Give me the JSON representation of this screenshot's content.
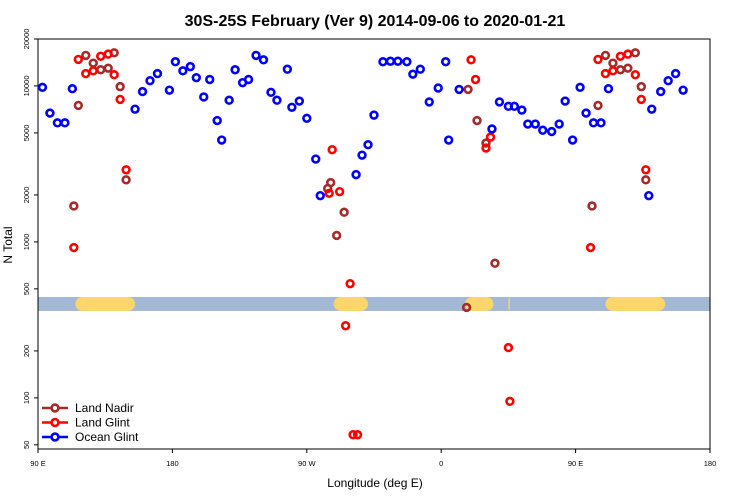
{
  "chart_data": {
    "type": "scatter",
    "title": "30S-25S February (Ver 9)   2014-09-06 to 2020-01-21",
    "xlabel": "Longitude (deg E)",
    "ylabel": "N Total",
    "xlim": [
      90,
      540
    ],
    "ylim": [
      47,
      20000
    ],
    "y_scale": "log",
    "grid": false,
    "legend_position": "bottom-left",
    "x_ticks": [
      {
        "value": 90,
        "label": "90 E"
      },
      {
        "value": 180,
        "label": "180"
      },
      {
        "value": 270,
        "label": "90 W"
      },
      {
        "value": 360,
        "label": "0"
      },
      {
        "value": 450,
        "label": "90 E"
      },
      {
        "value": 540,
        "label": "180"
      }
    ],
    "y_ticks": [
      {
        "value": 50,
        "label": "50"
      },
      {
        "value": 100,
        "label": "100"
      },
      {
        "value": 200,
        "label": "200"
      },
      {
        "value": 500,
        "label": "500"
      },
      {
        "value": 1000,
        "label": "1000"
      },
      {
        "value": 2000,
        "label": "2000"
      },
      {
        "value": 5000,
        "label": "5000"
      },
      {
        "value": 10000,
        "label": "10000"
      },
      {
        "value": 20000,
        "label": "20000"
      }
    ],
    "land_band": {
      "y_value": 400,
      "colors": {
        "ocean": "#a2b8d4",
        "land": "#fcd66a"
      },
      "land_ranges": [
        [
          115,
          155
        ],
        [
          288,
          311
        ],
        [
          376,
          395
        ],
        [
          405,
          406
        ],
        [
          470,
          510
        ]
      ]
    },
    "series": [
      {
        "name": "Land Nadir",
        "color": "#a52a2a",
        "points": [
          [
            114,
            1700
          ],
          [
            117,
            7500
          ],
          [
            122,
            15700
          ],
          [
            127,
            14000
          ],
          [
            132,
            12700
          ],
          [
            137,
            13000
          ],
          [
            141,
            16300
          ],
          [
            145,
            9900
          ],
          [
            149,
            2500
          ],
          [
            286,
            2400
          ],
          [
            284,
            2200
          ],
          [
            290,
            1100
          ],
          [
            295,
            1550
          ],
          [
            377,
            380
          ],
          [
            378,
            9500
          ],
          [
            384,
            6000
          ],
          [
            390,
            4300
          ],
          [
            396,
            730
          ],
          [
            461,
            1700
          ],
          [
            465,
            7500
          ],
          [
            470,
            15700
          ],
          [
            475,
            14000
          ],
          [
            480,
            12700
          ],
          [
            485,
            13000
          ],
          [
            490,
            16300
          ],
          [
            494,
            9900
          ],
          [
            497,
            2500
          ]
        ]
      },
      {
        "name": "Land Glint",
        "color": "#ff0000",
        "points": [
          [
            114,
            920
          ],
          [
            117,
            14800
          ],
          [
            122,
            12000
          ],
          [
            127,
            12500
          ],
          [
            132,
            15500
          ],
          [
            137,
            16000
          ],
          [
            141,
            11800
          ],
          [
            145,
            8200
          ],
          [
            149,
            2900
          ],
          [
            285,
            2050
          ],
          [
            287,
            3900
          ],
          [
            292,
            2100
          ],
          [
            296,
            290
          ],
          [
            299,
            540
          ],
          [
            301,
            58
          ],
          [
            304,
            58
          ],
          [
            380,
            14700
          ],
          [
            383,
            11000
          ],
          [
            390,
            4000
          ],
          [
            393,
            4700
          ],
          [
            405,
            210
          ],
          [
            406,
            95
          ],
          [
            460,
            920
          ],
          [
            465,
            14800
          ],
          [
            470,
            12000
          ],
          [
            475,
            12500
          ],
          [
            480,
            15500
          ],
          [
            485,
            16000
          ],
          [
            490,
            11800
          ],
          [
            494,
            8200
          ],
          [
            497,
            2900
          ]
        ]
      },
      {
        "name": "Ocean Glint",
        "color": "#0000ff",
        "points": [
          [
            93,
            9800
          ],
          [
            98,
            6700
          ],
          [
            103,
            5800
          ],
          [
            108,
            5800
          ],
          [
            113,
            9600
          ],
          [
            155,
            7100
          ],
          [
            160,
            9200
          ],
          [
            165,
            10800
          ],
          [
            170,
            12000
          ],
          [
            178,
            9400
          ],
          [
            182,
            14300
          ],
          [
            187,
            12500
          ],
          [
            192,
            13300
          ],
          [
            196,
            11300
          ],
          [
            201,
            8500
          ],
          [
            205,
            11000
          ],
          [
            210,
            6000
          ],
          [
            213,
            4500
          ],
          [
            218,
            8100
          ],
          [
            222,
            12700
          ],
          [
            227,
            10500
          ],
          [
            231,
            11000
          ],
          [
            236,
            15700
          ],
          [
            241,
            14700
          ],
          [
            246,
            9100
          ],
          [
            250,
            8100
          ],
          [
            257,
            12800
          ],
          [
            260,
            7300
          ],
          [
            265,
            8000
          ],
          [
            270,
            6200
          ],
          [
            276,
            3400
          ],
          [
            279,
            1980
          ],
          [
            303,
            2700
          ],
          [
            307,
            3600
          ],
          [
            311,
            4200
          ],
          [
            315,
            6500
          ],
          [
            321,
            14300
          ],
          [
            326,
            14400
          ],
          [
            331,
            14400
          ],
          [
            337,
            14300
          ],
          [
            341,
            11900
          ],
          [
            346,
            12800
          ],
          [
            352,
            7900
          ],
          [
            358,
            9700
          ],
          [
            363,
            14300
          ],
          [
            365,
            4500
          ],
          [
            372,
            9500
          ],
          [
            394,
            5300
          ],
          [
            399,
            7900
          ],
          [
            405,
            7400
          ],
          [
            409,
            7400
          ],
          [
            414,
            7000
          ],
          [
            418,
            5700
          ],
          [
            423,
            5700
          ],
          [
            428,
            5200
          ],
          [
            434,
            5100
          ],
          [
            439,
            5700
          ],
          [
            443,
            8000
          ],
          [
            448,
            4500
          ],
          [
            453,
            9800
          ],
          [
            457,
            6700
          ],
          [
            462,
            5800
          ],
          [
            467,
            5800
          ],
          [
            472,
            9600
          ],
          [
            499,
            1980
          ],
          [
            501,
            7100
          ],
          [
            507,
            9200
          ],
          [
            512,
            10800
          ],
          [
            517,
            12000
          ],
          [
            522,
            9400
          ]
        ]
      }
    ]
  }
}
